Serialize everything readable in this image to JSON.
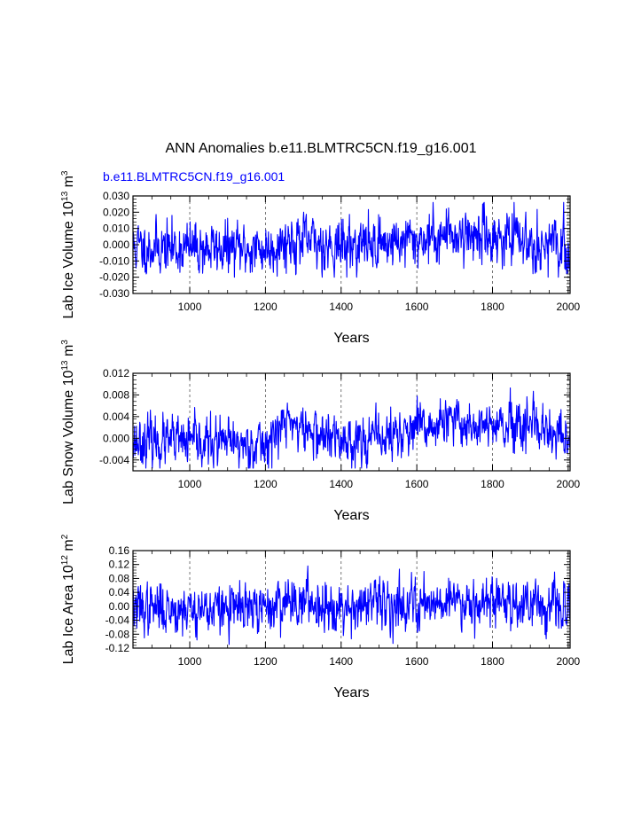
{
  "figure": {
    "title": "ANN Anomalies b.e11.BLMTRC5CN.f19_g16.001",
    "legend_label": "b.e11.BLMTRC5CN.f19_g16.001",
    "line_color": "#0000ff",
    "grid_color": "#555555"
  },
  "chart_data": [
    {
      "type": "line",
      "id": "ice-volume",
      "series": [
        {
          "name": "b.e11.BLMTRC5CN.f19_g16.001",
          "seed": 11,
          "amplitude": 0.0075,
          "min": -0.02,
          "max": 0.026,
          "trend": [
            [
              850,
              -0.0015
            ],
            [
              1200,
              -0.003
            ],
            [
              1260,
              0.003
            ],
            [
              1400,
              -0.001
            ],
            [
              1600,
              0.003
            ],
            [
              1700,
              0.007
            ],
            [
              1800,
              0.005
            ],
            [
              1900,
              0.002
            ],
            [
              2005,
              -0.004
            ]
          ]
        }
      ],
      "xlabel": "Years",
      "ylabel": "Lab Ice Volume 10",
      "ylabel_sup": "13",
      "ylabel_unit": " m",
      "ylabel_unit_sup": "3",
      "xlim": [
        850,
        2005
      ],
      "ylim": [
        -0.03,
        0.03
      ],
      "xticks": [
        1000,
        1200,
        1400,
        1600,
        1800,
        2000
      ],
      "xtick_labels": [
        "1000",
        "1200",
        "1400",
        "1600",
        "1800",
        "2000"
      ],
      "yticks": [
        -0.03,
        -0.02,
        -0.01,
        0.0,
        0.01,
        0.02,
        0.03
      ],
      "ytick_labels": [
        "-0.030",
        "-0.020",
        "-0.010",
        "0.000",
        "0.010",
        "0.020",
        "0.030"
      ],
      "grid": "vertical dashed at x ticks"
    },
    {
      "type": "line",
      "id": "snow-volume",
      "series": [
        {
          "name": "b.e11.BLMTRC5CN.f19_g16.001",
          "seed": 23,
          "amplitude": 0.0021,
          "min": -0.0055,
          "max": 0.0093,
          "trend": [
            [
              850,
              -0.0005
            ],
            [
              1200,
              -0.0012
            ],
            [
              1260,
              0.0035
            ],
            [
              1300,
              0.0015
            ],
            [
              1400,
              -0.0005
            ],
            [
              1500,
              0.0
            ],
            [
              1600,
              0.0015
            ],
            [
              1700,
              0.003
            ],
            [
              1800,
              0.002
            ],
            [
              1900,
              0.0015
            ],
            [
              2005,
              -0.0005
            ]
          ]
        }
      ],
      "xlabel": "Years",
      "ylabel": "Lab Snow Volume 10",
      "ylabel_sup": "13",
      "ylabel_unit": " m",
      "ylabel_unit_sup": "3",
      "xlim": [
        850,
        2005
      ],
      "ylim": [
        -0.006,
        0.012
      ],
      "xticks": [
        1000,
        1200,
        1400,
        1600,
        1800,
        2000
      ],
      "xtick_labels": [
        "1000",
        "1200",
        "1400",
        "1600",
        "1800",
        "2000"
      ],
      "yticks": [
        -0.004,
        0.0,
        0.004,
        0.008,
        0.012
      ],
      "ytick_labels": [
        "-0.004",
        "0.000",
        "0.004",
        "0.008",
        "0.012"
      ],
      "grid": "vertical dashed at x ticks"
    },
    {
      "type": "line",
      "id": "ice-area",
      "series": [
        {
          "name": "b.e11.BLMTRC5CN.f19_g16.001",
          "seed": 37,
          "amplitude": 0.033,
          "min": -0.118,
          "max": 0.13,
          "trend": [
            [
              850,
              -0.005
            ],
            [
              1200,
              -0.01
            ],
            [
              1260,
              0.02
            ],
            [
              1400,
              0.0
            ],
            [
              1600,
              0.01
            ],
            [
              1700,
              0.02
            ],
            [
              1800,
              0.015
            ],
            [
              1900,
              0.01
            ],
            [
              2005,
              -0.01
            ]
          ]
        }
      ],
      "xlabel": "Years",
      "ylabel": "Lab Ice Area 10",
      "ylabel_sup": "12",
      "ylabel_unit": " m",
      "ylabel_unit_sup": "2",
      "xlim": [
        850,
        2005
      ],
      "ylim": [
        -0.12,
        0.16
      ],
      "xticks": [
        1000,
        1200,
        1400,
        1600,
        1800,
        2000
      ],
      "xtick_labels": [
        "1000",
        "1200",
        "1400",
        "1600",
        "1800",
        "2000"
      ],
      "yticks": [
        -0.12,
        -0.08,
        -0.04,
        0.0,
        0.04,
        0.08,
        0.12,
        0.16
      ],
      "ytick_labels": [
        "-0.12",
        "-0.08",
        "-0.04",
        "0.00",
        "0.04",
        "0.08",
        "0.12",
        "0.16"
      ],
      "grid": "vertical dashed at x ticks"
    }
  ]
}
